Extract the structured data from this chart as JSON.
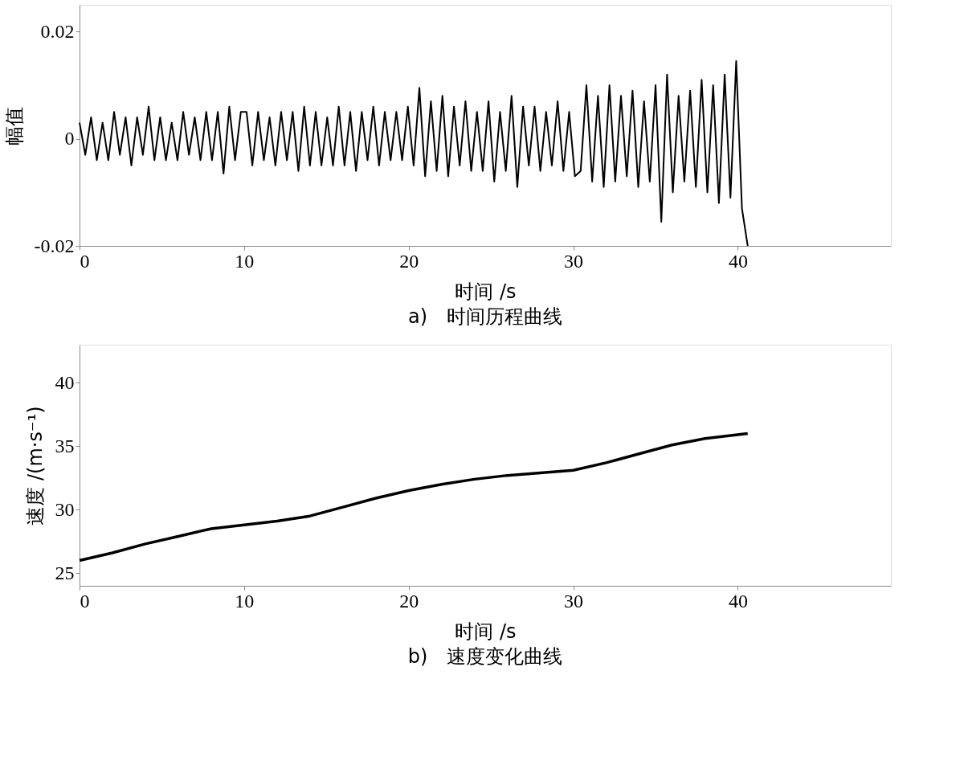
{
  "chart_data": [
    {
      "type": "line",
      "title": "a)　时间历程曲线",
      "xlabel": "时间 /s",
      "ylabel": "幅值",
      "xlim": [
        0,
        49.3
      ],
      "xticks": [
        0,
        10,
        20,
        30,
        40
      ],
      "ylim": [
        -0.02,
        0.025
      ],
      "yticks": [
        -0.02,
        0,
        0.02
      ],
      "line_style": "solid",
      "x": [
        0,
        0.35,
        0.7,
        1.05,
        1.4,
        1.75,
        2.1,
        2.45,
        2.8,
        3.15,
        3.5,
        3.85,
        4.2,
        4.55,
        4.9,
        5.25,
        5.6,
        5.95,
        6.3,
        6.65,
        7,
        7.35,
        7.7,
        8.05,
        8.4,
        8.75,
        9.1,
        9.45,
        9.8,
        10.15,
        10.5,
        10.85,
        11.2,
        11.55,
        11.9,
        12.25,
        12.6,
        12.95,
        13.3,
        13.65,
        14,
        14.35,
        14.7,
        15.05,
        15.4,
        15.75,
        16.1,
        16.45,
        16.8,
        17.15,
        17.5,
        17.85,
        18.2,
        18.55,
        18.9,
        19.25,
        19.6,
        19.95,
        20.3,
        20.65,
        21,
        21.35,
        21.7,
        22.05,
        22.4,
        22.75,
        23.1,
        23.45,
        23.8,
        24.15,
        24.5,
        24.85,
        25.2,
        25.55,
        25.9,
        26.25,
        26.6,
        26.95,
        27.3,
        27.65,
        28,
        28.35,
        28.7,
        29.05,
        29.4,
        29.75,
        30.1,
        30.45,
        30.8,
        31.15,
        31.5,
        31.85,
        32.2,
        32.55,
        32.9,
        33.25,
        33.6,
        33.95,
        34.3,
        34.65,
        35,
        35.35,
        35.7,
        36.05,
        36.4,
        36.75,
        37.1,
        37.45,
        37.8,
        38.15,
        38.5,
        38.85,
        39.2,
        39.55,
        39.9,
        40.25,
        40.6
      ],
      "series": [
        {
          "color": "#000000",
          "values": [
            0.003,
            -0.003,
            0.004,
            -0.004,
            0.003,
            -0.004,
            0.005,
            -0.003,
            0.004,
            -0.005,
            0.004,
            -0.003,
            0.006,
            -0.004,
            0.004,
            -0.004,
            0.003,
            -0.004,
            0.005,
            -0.003,
            0.004,
            -0.004,
            0.005,
            -0.004,
            0.005,
            -0.0065,
            0.006,
            -0.004,
            0.005,
            0.005,
            -0.005,
            0.005,
            -0.004,
            0.004,
            -0.005,
            0.005,
            -0.004,
            0.005,
            -0.006,
            0.006,
            -0.005,
            0.005,
            -0.005,
            0.004,
            -0.005,
            0.006,
            -0.005,
            0.005,
            -0.006,
            0.005,
            -0.004,
            0.006,
            -0.005,
            0.005,
            -0.004,
            0.005,
            -0.004,
            0.006,
            -0.005,
            0.0095,
            -0.007,
            0.007,
            -0.006,
            0.008,
            -0.007,
            0.006,
            -0.005,
            0.007,
            -0.006,
            0.005,
            -0.006,
            0.007,
            -0.008,
            0.005,
            -0.006,
            0.008,
            -0.009,
            0.006,
            -0.005,
            0.006,
            -0.006,
            0.005,
            -0.005,
            0.007,
            -0.006,
            0.005,
            -0.007,
            -0.006,
            0.01,
            -0.008,
            0.008,
            -0.009,
            0.01,
            -0.008,
            0.008,
            -0.007,
            0.009,
            -0.009,
            0.007,
            -0.008,
            0.01,
            -0.0155,
            0.012,
            -0.01,
            0.008,
            -0.008,
            0.009,
            -0.009,
            0.011,
            -0.01,
            0.01,
            -0.012,
            0.012,
            -0.011,
            0.0145,
            -0.013,
            -0.02
          ]
        }
      ]
    },
    {
      "type": "line",
      "title": "b)　速度变化曲线",
      "xlabel": "时间 /s",
      "ylabel": "速度 /(m·s⁻¹)",
      "xlim": [
        0,
        49.3
      ],
      "xticks": [
        0,
        10,
        20,
        30,
        40
      ],
      "ylim": [
        24,
        43
      ],
      "yticks": [
        25,
        30,
        35,
        40
      ],
      "line_style": "solid",
      "x": [
        0,
        2,
        4,
        6,
        8,
        10,
        12,
        14,
        16,
        18,
        20,
        22,
        24,
        26,
        28,
        30,
        32,
        34,
        36,
        38,
        40.6
      ],
      "series": [
        {
          "color": "#000000",
          "values": [
            26.0,
            26.6,
            27.3,
            27.9,
            28.5,
            28.8,
            29.1,
            29.5,
            30.2,
            30.9,
            31.5,
            32.0,
            32.4,
            32.7,
            32.9,
            33.1,
            33.7,
            34.4,
            35.1,
            35.6,
            36.0
          ]
        }
      ]
    }
  ]
}
